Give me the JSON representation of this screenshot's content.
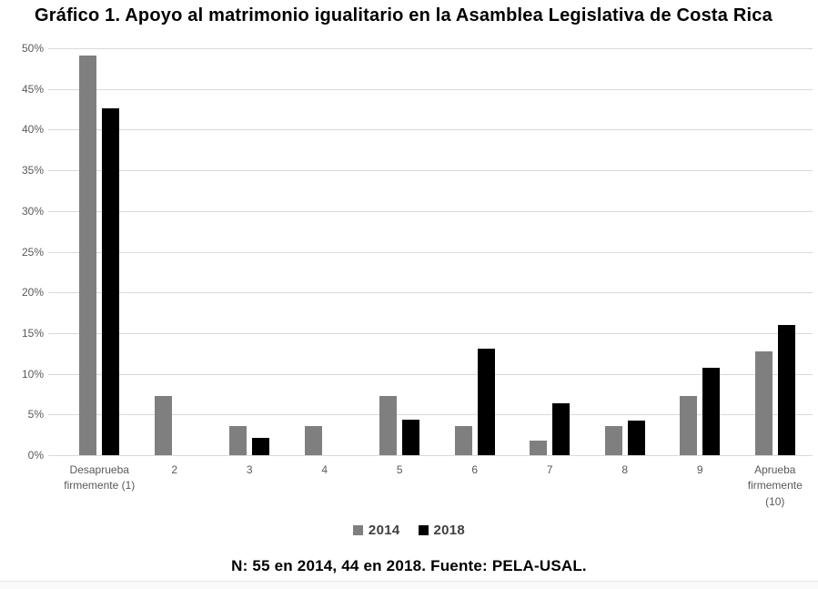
{
  "title": "Gráfico 1. Apoyo al matrimonio igualitario en la Asamblea Legislativa de Costa Rica",
  "footer": "N: 55 en 2014, 44 en 2018. Fuente: PELA-USAL.",
  "colors": {
    "bar_2014": "#7f7f7f",
    "bar_2018": "#000000",
    "gridline": "#d9d9d9",
    "axis_text": "#595959",
    "title_text": "#000000"
  },
  "chart_data": {
    "type": "bar",
    "title": "Gráfico 1. Apoyo al matrimonio igualitario en la Asamblea Legislativa de Costa Rica",
    "categories": [
      "Desaprueba\nfirmemente (1)",
      "2",
      "3",
      "4",
      "5",
      "6",
      "7",
      "8",
      "9",
      "Aprueba\nfirmemente\n(10)"
    ],
    "series": [
      {
        "name": "2014",
        "color": "#7f7f7f",
        "values": [
          49.1,
          7.3,
          3.6,
          3.6,
          7.3,
          3.6,
          1.8,
          3.6,
          7.3,
          12.7
        ]
      },
      {
        "name": "2018",
        "color": "#000000",
        "values": [
          42.6,
          0,
          2.1,
          0,
          4.4,
          13.1,
          6.4,
          4.3,
          10.7,
          16.0
        ]
      }
    ],
    "xlabel": "",
    "ylabel": "",
    "ylim": [
      0,
      50
    ],
    "ytick_labels": [
      "50%",
      "45%",
      "40%",
      "35%",
      "30%",
      "25%",
      "20%",
      "15%",
      "10%",
      "5%",
      "0%"
    ],
    "grid": true,
    "legend_position": "bottom",
    "note": "N: 55 en 2014, 44 en 2018. Fuente: PELA-USAL."
  }
}
